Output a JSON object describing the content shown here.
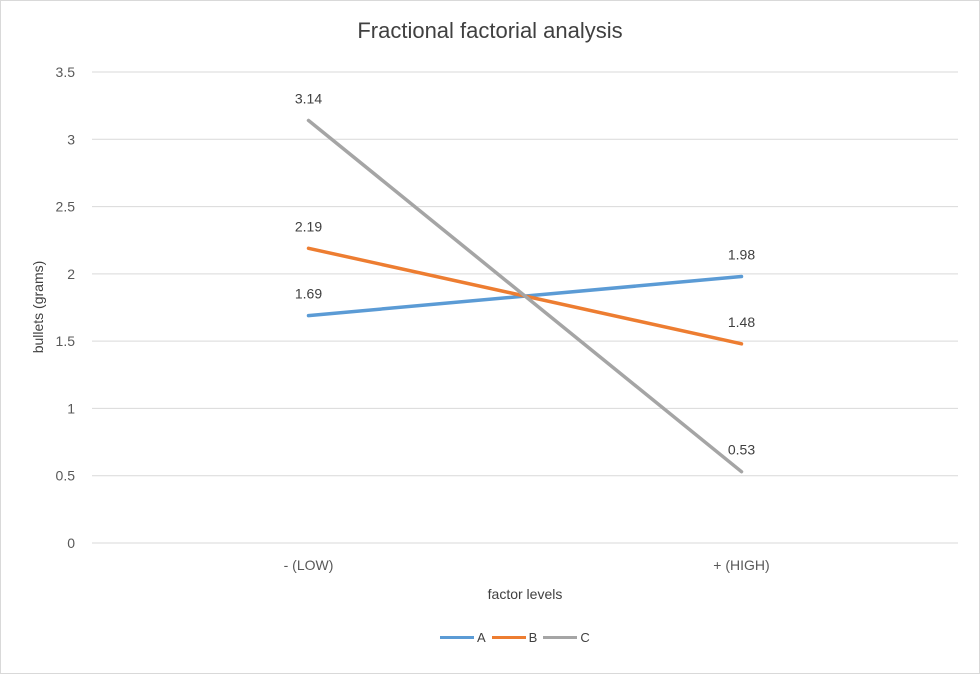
{
  "chart_data": {
    "type": "line",
    "title": "Fractional factorial analysis",
    "xlabel": "factor levels",
    "ylabel": "bullets (grams)",
    "categories": [
      "- (LOW)",
      "+ (HIGH)"
    ],
    "ylim": [
      0,
      3.5
    ],
    "yticks": [
      0,
      0.5,
      1,
      1.5,
      2,
      2.5,
      3,
      3.5
    ],
    "ytick_labels": [
      "0",
      "0.5",
      "1",
      "1.5",
      "2",
      "2.5",
      "3",
      "3.5"
    ],
    "grid": true,
    "legend_position": "bottom",
    "series": [
      {
        "name": "A",
        "values": [
          1.69,
          1.98
        ],
        "labels": [
          "1.69",
          "1.98"
        ],
        "color": "#5b9bd5"
      },
      {
        "name": "B",
        "values": [
          2.19,
          1.48
        ],
        "labels": [
          "2.19",
          "1.48"
        ],
        "color": "#ed7d31"
      },
      {
        "name": "C",
        "values": [
          3.14,
          0.53
        ],
        "labels": [
          "3.14",
          "0.53"
        ],
        "color": "#a5a5a5"
      }
    ]
  }
}
